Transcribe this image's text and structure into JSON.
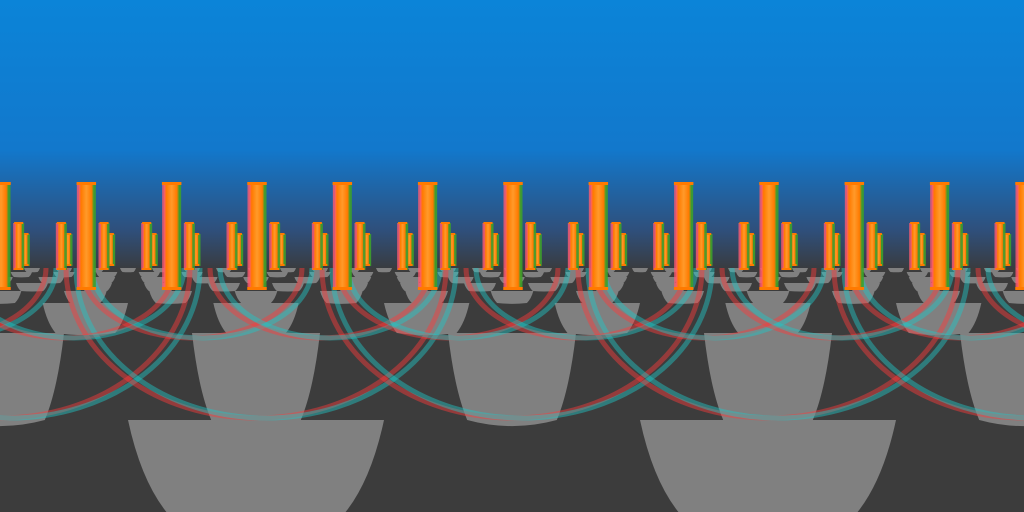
{
  "scene": {
    "projection": "equirectangular-360-panorama",
    "stereo": "red-cyan-anaglyph",
    "sky_colors": [
      "#0b84d8",
      "#1278cc",
      "#2f4f7a",
      "#3a3a3a"
    ],
    "floor_colors": [
      "#808080",
      "#3c3c3c"
    ],
    "floor_pattern": "checkerboard",
    "anaglyph_colors": {
      "left": "#ff3a3a",
      "right": "#20c8c8"
    },
    "pillar_colors": {
      "body": "#ff7a00",
      "highlight": "#ff9a2a",
      "left_fringe": "#ff5a70",
      "right_fringe": "#3ea02a"
    },
    "pillar_rows": {
      "near": 12,
      "mid": 24,
      "far": 24
    }
  }
}
